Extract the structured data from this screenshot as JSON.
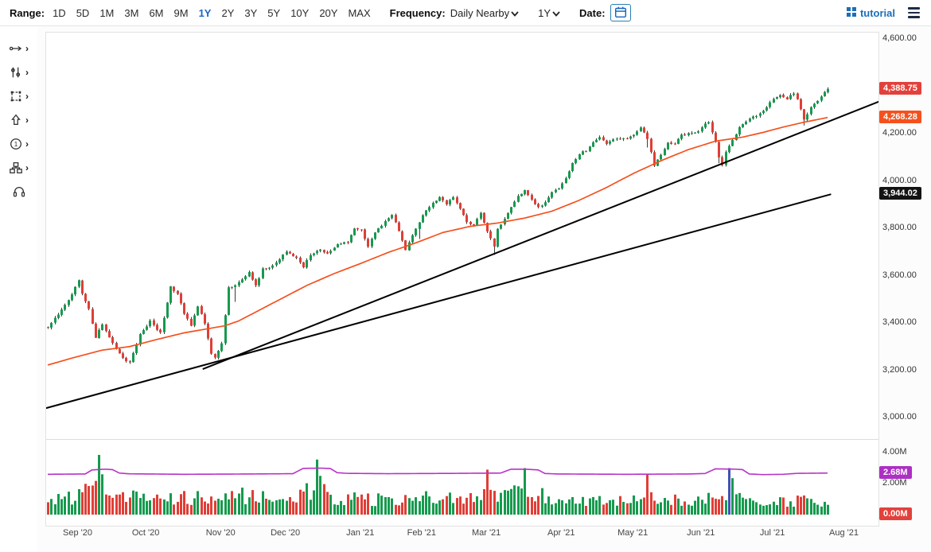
{
  "toolbar": {
    "range_label": "Range:",
    "ranges": [
      "1D",
      "5D",
      "1M",
      "3M",
      "6M",
      "9M",
      "1Y",
      "2Y",
      "3Y",
      "5Y",
      "10Y",
      "20Y",
      "MAX"
    ],
    "active_range": "1Y",
    "frequency_label": "Frequency:",
    "frequency_value": "Daily Nearby",
    "period_value": "1Y",
    "date_label": "Date:",
    "brand": "tutorial"
  },
  "icons": [
    "chevron-down-icon",
    "calendar-icon",
    "grid-icon",
    "menu-icon"
  ],
  "sidebar": {
    "tools": [
      "trendline-tool",
      "indicators-tool",
      "shape-tool",
      "arrow-tool",
      "annotation-tool",
      "pattern-tool",
      "headset-icon"
    ]
  },
  "chart_data": {
    "type": "candlestick",
    "x_axis": {
      "months": [
        {
          "label": "Sep '20",
          "d": 9
        },
        {
          "label": "Oct '20",
          "d": 29
        },
        {
          "label": "Nov '20",
          "d": 51
        },
        {
          "label": "Dec '20",
          "d": 70
        },
        {
          "label": "Jan '21",
          "d": 92
        },
        {
          "label": "Feb '21",
          "d": 110
        },
        {
          "label": "Mar '21",
          "d": 129
        },
        {
          "label": "Apr '21",
          "d": 151
        },
        {
          "label": "May '21",
          "d": 172
        },
        {
          "label": "Jun '21",
          "d": 192
        },
        {
          "label": "Jul '21",
          "d": 213
        },
        {
          "label": "Aug '21",
          "d": 234
        }
      ]
    },
    "y_axis": {
      "ticks": [
        {
          "v": 4600,
          "label": "4,600.00"
        },
        {
          "v": 4200,
          "label": "4,200.00"
        },
        {
          "v": 4000,
          "label": "4,000.00"
        },
        {
          "v": 3800,
          "label": "3,800.00"
        },
        {
          "v": 3600,
          "label": "3,600.00"
        },
        {
          "v": 3400,
          "label": "3,400.00"
        },
        {
          "v": 3200,
          "label": "3,200.00"
        },
        {
          "v": 3000,
          "label": "3,000.00"
        }
      ]
    },
    "series": {
      "days": 230,
      "last_close": 4388.75,
      "close_anchors": [
        [
          0,
          3385
        ],
        [
          3,
          3440
        ],
        [
          6,
          3500
        ],
        [
          9,
          3580
        ],
        [
          10,
          3528
        ],
        [
          12,
          3455
        ],
        [
          14,
          3340
        ],
        [
          16,
          3395
        ],
        [
          19,
          3320
        ],
        [
          22,
          3252
        ],
        [
          24,
          3236
        ],
        [
          27,
          3350
        ],
        [
          30,
          3408
        ],
        [
          33,
          3360
        ],
        [
          36,
          3558
        ],
        [
          38,
          3525
        ],
        [
          40,
          3435
        ],
        [
          42,
          3390
        ],
        [
          44,
          3465
        ],
        [
          46,
          3400
        ],
        [
          48,
          3270
        ],
        [
          49,
          3255
        ],
        [
          51,
          3310
        ],
        [
          52,
          3430
        ],
        [
          53,
          3545
        ],
        [
          55,
          3560
        ],
        [
          57,
          3585
        ],
        [
          59,
          3612
        ],
        [
          61,
          3560
        ],
        [
          63,
          3628
        ],
        [
          66,
          3640
        ],
        [
          68,
          3668
        ],
        [
          70,
          3700
        ],
        [
          73,
          3670
        ],
        [
          75,
          3640
        ],
        [
          77,
          3690
        ],
        [
          80,
          3710
        ],
        [
          82,
          3695
        ],
        [
          85,
          3735
        ],
        [
          88,
          3745
        ],
        [
          90,
          3798
        ],
        [
          92,
          3788
        ],
        [
          94,
          3720
        ],
        [
          95,
          3750
        ],
        [
          97,
          3800
        ],
        [
          99,
          3828
        ],
        [
          101,
          3850
        ],
        [
          103,
          3790
        ],
        [
          105,
          3715
        ],
        [
          107,
          3770
        ],
        [
          109,
          3830
        ],
        [
          111,
          3878
        ],
        [
          113,
          3908
        ],
        [
          115,
          3934
        ],
        [
          117,
          3905
        ],
        [
          119,
          3930
        ],
        [
          121,
          3885
        ],
        [
          123,
          3830
        ],
        [
          125,
          3815
        ],
        [
          127,
          3868
        ],
        [
          128,
          3820
        ],
        [
          129,
          3790
        ],
        [
          130,
          3755
        ],
        [
          131,
          3725
        ],
        [
          132,
          3800
        ],
        [
          134,
          3840
        ],
        [
          136,
          3890
        ],
        [
          138,
          3938
        ],
        [
          140,
          3958
        ],
        [
          142,
          3915
        ],
        [
          144,
          3885
        ],
        [
          146,
          3910
        ],
        [
          148,
          3952
        ],
        [
          150,
          3972
        ],
        [
          152,
          4012
        ],
        [
          154,
          4078
        ],
        [
          156,
          4118
        ],
        [
          158,
          4128
        ],
        [
          160,
          4162
        ],
        [
          162,
          4180
        ],
        [
          164,
          4158
        ],
        [
          166,
          4178
        ],
        [
          168,
          4172
        ],
        [
          170,
          4183
        ],
        [
          172,
          4200
        ],
        [
          174,
          4232
        ],
        [
          176,
          4178
        ],
        [
          178,
          4058
        ],
        [
          180,
          4112
        ],
        [
          182,
          4158
        ],
        [
          184,
          4152
        ],
        [
          186,
          4192
        ],
        [
          188,
          4198
        ],
        [
          190,
          4203
        ],
        [
          192,
          4226
        ],
        [
          194,
          4248
        ],
        [
          196,
          4160
        ],
        [
          197,
          4095
        ],
        [
          198,
          4062
        ],
        [
          199,
          4120
        ],
        [
          201,
          4175
        ],
        [
          203,
          4228
        ],
        [
          205,
          4252
        ],
        [
          207,
          4275
        ],
        [
          209,
          4285
        ],
        [
          211,
          4310
        ],
        [
          213,
          4345
        ],
        [
          215,
          4362
        ],
        [
          217,
          4348
        ],
        [
          219,
          4372
        ],
        [
          220,
          4350
        ],
        [
          221,
          4310
        ],
        [
          222,
          4262
        ],
        [
          223,
          4285
        ],
        [
          224,
          4310
        ],
        [
          226,
          4338
        ],
        [
          227,
          4362
        ],
        [
          228,
          4378
        ],
        [
          229,
          4388.75
        ]
      ],
      "ma_anchors": [
        [
          0,
          3222
        ],
        [
          8,
          3255
        ],
        [
          16,
          3285
        ],
        [
          24,
          3300
        ],
        [
          32,
          3330
        ],
        [
          40,
          3358
        ],
        [
          48,
          3378
        ],
        [
          52,
          3388
        ],
        [
          56,
          3408
        ],
        [
          60,
          3438
        ],
        [
          68,
          3498
        ],
        [
          76,
          3558
        ],
        [
          84,
          3608
        ],
        [
          92,
          3652
        ],
        [
          100,
          3698
        ],
        [
          108,
          3738
        ],
        [
          116,
          3782
        ],
        [
          124,
          3808
        ],
        [
          132,
          3822
        ],
        [
          140,
          3843
        ],
        [
          148,
          3872
        ],
        [
          156,
          3918
        ],
        [
          164,
          3972
        ],
        [
          172,
          4032
        ],
        [
          180,
          4085
        ],
        [
          188,
          4132
        ],
        [
          196,
          4168
        ],
        [
          204,
          4185
        ],
        [
          210,
          4205
        ],
        [
          216,
          4228
        ],
        [
          222,
          4248
        ],
        [
          229,
          4268.28
        ]
      ],
      "trendlines": [
        {
          "d1": 45.5,
          "p1": 3205,
          "d2": 244,
          "p2": 4335
        },
        {
          "d1": -0.5,
          "p1": 3040,
          "d2": 230,
          "p2": 3944.02
        }
      ],
      "wick_events": [
        [
          55,
          55
        ],
        [
          109,
          40
        ],
        [
          131,
          28
        ],
        [
          176,
          30
        ],
        [
          197,
          22
        ],
        [
          222,
          20
        ]
      ]
    },
    "volume": {
      "ticks": [
        {
          "v": 4,
          "label": "4.00M"
        },
        {
          "v": 2,
          "label": "2.00M"
        }
      ],
      "envelope_anchors": [
        [
          0,
          0.9
        ],
        [
          8,
          1.1
        ],
        [
          12,
          1.5
        ],
        [
          15,
          1.8
        ],
        [
          18,
          1.3
        ],
        [
          24,
          1.1
        ],
        [
          32,
          1.0
        ],
        [
          40,
          1.05
        ],
        [
          48,
          1.2
        ],
        [
          55,
          1.3
        ],
        [
          62,
          1.1
        ],
        [
          70,
          1.0
        ],
        [
          76,
          1.5
        ],
        [
          80,
          1.7
        ],
        [
          84,
          1.1
        ],
        [
          92,
          1.0
        ],
        [
          100,
          0.95
        ],
        [
          108,
          1.05
        ],
        [
          116,
          1.1
        ],
        [
          124,
          1.05
        ],
        [
          129,
          1.4
        ],
        [
          134,
          1.2
        ],
        [
          138,
          1.5
        ],
        [
          142,
          1.4
        ],
        [
          148,
          1.1
        ],
        [
          156,
          0.9
        ],
        [
          164,
          0.85
        ],
        [
          170,
          0.9
        ],
        [
          176,
          1.3
        ],
        [
          182,
          1.0
        ],
        [
          188,
          0.9
        ],
        [
          194,
          1.0
        ],
        [
          199,
          1.3
        ],
        [
          203,
          1.1
        ],
        [
          208,
          0.8
        ],
        [
          214,
          0.75
        ],
        [
          220,
          0.95
        ],
        [
          225,
          0.85
        ],
        [
          229,
          0.8
        ]
      ],
      "spikes": {
        "15": 3.85,
        "16": 2.6,
        "79": 3.55,
        "80": 2.5,
        "129": 2.9,
        "140": 3.0,
        "176": 2.6,
        "200": 3.0,
        "201": 2.35
      },
      "blue_days": [
        200
      ],
      "purple_anchors": [
        [
          0,
          2.6
        ],
        [
          11,
          2.62
        ],
        [
          13,
          2.88
        ],
        [
          17,
          2.93
        ],
        [
          19,
          2.9
        ],
        [
          21,
          2.68
        ],
        [
          24,
          2.63
        ],
        [
          40,
          2.6
        ],
        [
          60,
          2.62
        ],
        [
          72,
          2.64
        ],
        [
          75,
          2.98
        ],
        [
          80,
          3.0
        ],
        [
          83,
          2.97
        ],
        [
          85,
          2.7
        ],
        [
          88,
          2.66
        ],
        [
          100,
          2.64
        ],
        [
          120,
          2.66
        ],
        [
          133,
          2.68
        ],
        [
          136,
          2.93
        ],
        [
          141,
          2.92
        ],
        [
          144,
          2.88
        ],
        [
          146,
          2.65
        ],
        [
          150,
          2.62
        ],
        [
          170,
          2.6
        ],
        [
          188,
          2.62
        ],
        [
          193,
          2.65
        ],
        [
          196,
          2.95
        ],
        [
          202,
          2.93
        ],
        [
          204,
          2.9
        ],
        [
          206,
          2.62
        ],
        [
          210,
          2.58
        ],
        [
          216,
          2.6
        ],
        [
          220,
          2.66
        ],
        [
          229,
          2.68
        ]
      ]
    },
    "labels": {
      "last_price": {
        "name": "last-price-badge",
        "axis": "price",
        "v": 4388.75,
        "text": "4,388.75",
        "bg": "#e2413b"
      },
      "ma_value": {
        "name": "ma-value-badge",
        "axis": "price",
        "v": 4268.28,
        "text": "4,268.28",
        "bg": "#f4511e"
      },
      "trend_value": {
        "name": "trendline-value-badge",
        "axis": "price",
        "v": 3944.02,
        "text": "3,944.02",
        "bg": "#141414"
      },
      "volume_line": {
        "name": "open-interest-badge",
        "axis": "volume",
        "v": 2.68,
        "text": "2.68M",
        "bg": "#ad2fc4"
      },
      "volume_zero": {
        "name": "volume-zero-badge",
        "axis": "volume",
        "v": 0,
        "text": "0.00M",
        "bg": "#e2413b"
      }
    },
    "colors": {
      "up": "#169a4e",
      "down": "#e03e36",
      "wick": "#3c3c3c",
      "ma": "#f4511e",
      "trend": "#000000",
      "purple": "#b832c8",
      "vol_blue": "#3f51b5"
    }
  }
}
